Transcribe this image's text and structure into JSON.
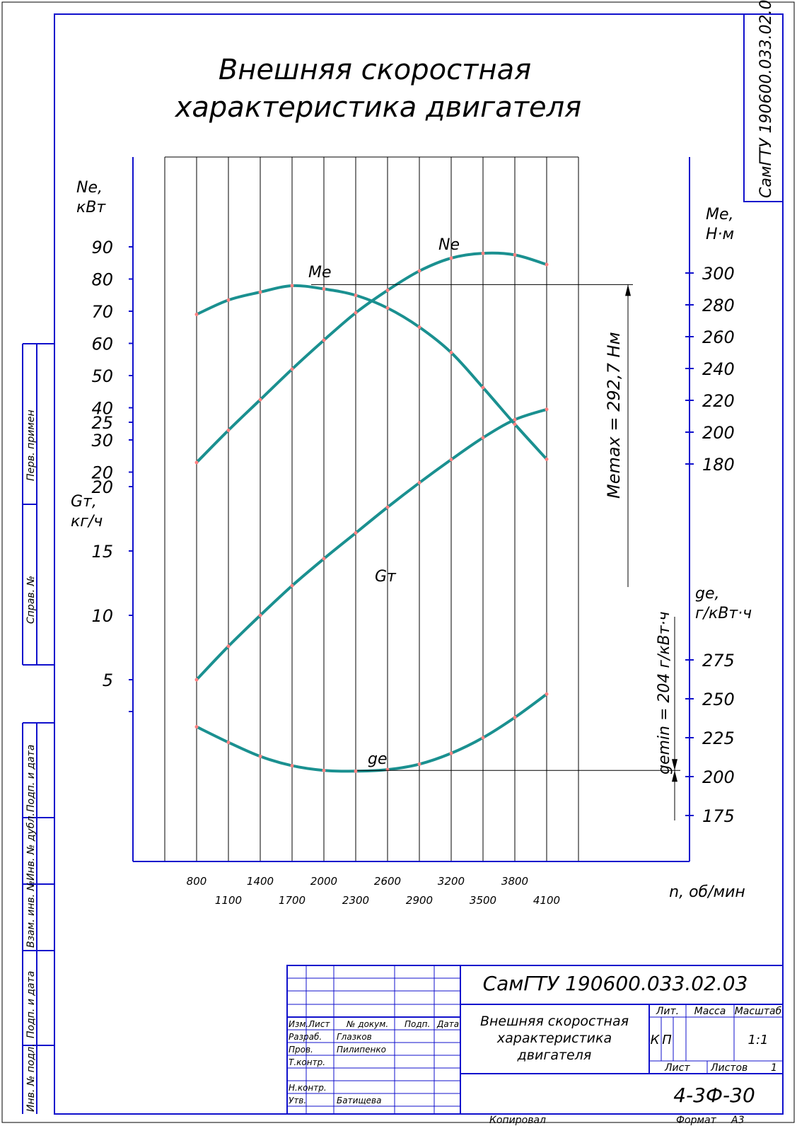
{
  "drawing": {
    "title_line1": "Внешняя скоростная",
    "title_line2": "характеристика двигателя",
    "stamp_vertical": "СамГТУ 190600.033.02.03",
    "side_labels": [
      "Перв. примен",
      "Справ. №",
      "Подп. и дата",
      "Инв. № дубл.",
      "Взам. инв. №",
      "Подп. и дата",
      "Инв. № подл."
    ],
    "colors": {
      "frame": "#1010cc",
      "curve": "#1a9090",
      "point": "#ff8080",
      "grid": "#000000"
    }
  },
  "chart_data": {
    "type": "line",
    "x_ticks_top": [
      "800",
      "1400",
      "2000",
      "2600",
      "3200",
      "3800"
    ],
    "x_ticks_bottom": [
      "1100",
      "1700",
      "2300",
      "2900",
      "3500",
      "4100"
    ],
    "xlabel": "n, об/мин",
    "x_grid": [
      500,
      800,
      1100,
      1400,
      1700,
      2000,
      2300,
      2600,
      2900,
      3200,
      3500,
      3800,
      4100,
      4400
    ],
    "axes": {
      "Ne": {
        "label1": "Ne,",
        "label2": "кВт",
        "ticks": [
          "90",
          "80",
          "70",
          "60",
          "50",
          "40",
          "30",
          "20"
        ]
      },
      "Gt": {
        "label1": "Gт,",
        "label2": "кг/ч",
        "ticks": [
          "25",
          "20",
          "15",
          "10",
          "5"
        ]
      },
      "Me": {
        "label1": "Me,",
        "label2": "Н·м",
        "ticks": [
          "300",
          "280",
          "260",
          "240",
          "220",
          "200",
          "180"
        ]
      },
      "ge": {
        "label1": "ge,",
        "label2": "г/кВт·ч",
        "ticks": [
          "275",
          "250",
          "225",
          "200",
          "175"
        ]
      }
    },
    "series": [
      {
        "name": "Ne",
        "axis": "Ne",
        "x": [
          800,
          1100,
          1400,
          1700,
          2000,
          2300,
          2600,
          2900,
          3200,
          3500,
          3800,
          4100
        ],
        "values": [
          23,
          33,
          42.5,
          52,
          61,
          69.5,
          76.5,
          82.5,
          86.5,
          88,
          87.5,
          84.5
        ]
      },
      {
        "name": "Me",
        "axis": "Me",
        "x": [
          800,
          1100,
          1400,
          1700,
          2000,
          2300,
          2600,
          2900,
          3200,
          3500,
          3800,
          4100
        ],
        "values": [
          274,
          283,
          288,
          292,
          290,
          286,
          278,
          266,
          250,
          228,
          205,
          183
        ]
      },
      {
        "name": "Gт",
        "axis": "Gt",
        "x": [
          800,
          1100,
          1400,
          1700,
          2000,
          2300,
          2600,
          2900,
          3200,
          3500,
          3800,
          4100
        ],
        "values": [
          5,
          7.6,
          10,
          12.3,
          14.4,
          16.4,
          18.4,
          20.3,
          22.1,
          23.8,
          25.2,
          26
        ]
      },
      {
        "name": "ge",
        "axis": "ge",
        "x": [
          800,
          1100,
          1400,
          1700,
          2000,
          2300,
          2600,
          2900,
          3200,
          3500,
          3800,
          4100
        ],
        "values": [
          232,
          222,
          213,
          207,
          204,
          203.5,
          204.5,
          208,
          215,
          225,
          238,
          253
        ]
      }
    ],
    "annotations": {
      "memax": "Memax = 292,7 Нм",
      "gemin": "gemin = 204 г/кВт·ч",
      "memax_value": 292.7,
      "gemin_value": 204
    }
  },
  "title_block": {
    "doc_code": "СамГТУ 190600.033.02.03",
    "doc_name_line1": "Внешняя скоростная",
    "doc_name_line2": "характеристика",
    "doc_name_line3": "двигателя",
    "col_izm": "Изм.",
    "col_list": "Лист",
    "col_docnum": "№ докум.",
    "col_sign": "Подп.",
    "col_date": "Дата",
    "razrab_label": "Разраб.",
    "razrab_name": "Глазков",
    "prov_label": "Пров.",
    "prov_name": "Пилипенко",
    "tkontr_label": "Т.контр.",
    "nkontr_label": "Н.контр.",
    "utv_label": "Утв.",
    "utv_name": "Батищева",
    "lit_label": "Лит.",
    "massa_label": "Масса",
    "masshtab_label": "Масштаб",
    "lit_k": "К",
    "lit_p": "П",
    "scale": "1:1",
    "list_label": "Лист",
    "listov_label": "Листов",
    "listov_value": "1",
    "group": "4-3Ф-30",
    "copied": "Копировал",
    "format_label": "Формат",
    "format_value": "А3"
  }
}
